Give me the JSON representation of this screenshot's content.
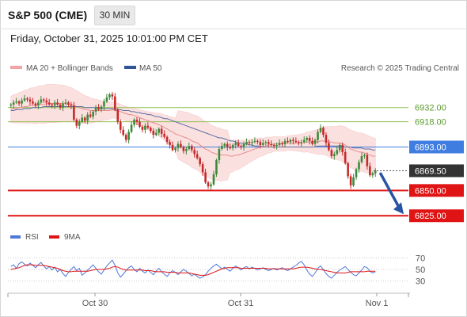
{
  "header": {
    "title": "S&P 500 (CME)",
    "timeframe": "30 MIN",
    "datetime": "Friday, October 31, 2025 10:01:00 PM CET"
  },
  "legend": {
    "ma20": "MA 20 + Bollinger Bands",
    "ma50": "MA 50",
    "copyright": "Research © 2025 Trading Central",
    "rsi": "RSI",
    "ma9": "9MA"
  },
  "colors": {
    "up": "#3b8a3b",
    "down": "#c62a2a",
    "bollinger_fill": "#fbe0e0",
    "ma20": "#e88b8b",
    "ma50": "#5b6ea3",
    "resistance": "#8fbf4f",
    "pivot": "#3f7de0",
    "support": "#e01414",
    "last": "#333333",
    "rsi": "#4f78d8",
    "rsi_ma": "#e01414",
    "arrow": "#2855a3"
  },
  "chart_data": [
    {
      "type": "candlestick",
      "title": "S&P 500 (CME) 30 MIN",
      "y_range": [
        6815,
        6960
      ],
      "x_ticks": [
        "Oct 30",
        "Oct 31",
        "Nov 1"
      ],
      "levels": [
        {
          "label": "6932.00",
          "value": 6932.0,
          "kind": "resistance"
        },
        {
          "label": "6918.00",
          "value": 6918.0,
          "kind": "resistance"
        },
        {
          "label": "6893.00",
          "value": 6893.0,
          "kind": "pivot"
        },
        {
          "label": "6869.50",
          "value": 6869.5,
          "kind": "last"
        },
        {
          "label": "6850.00",
          "value": 6850.0,
          "kind": "support"
        },
        {
          "label": "6825.00",
          "value": 6825.0,
          "kind": "support"
        }
      ],
      "closes": [
        6935,
        6937,
        6938,
        6936,
        6939,
        6941,
        6940,
        6938,
        6936,
        6934,
        6937,
        6940,
        6939,
        6937,
        6935,
        6934,
        6937,
        6935,
        6932,
        6936,
        6937,
        6935,
        6934,
        6920,
        6914,
        6918,
        6922,
        6919,
        6925,
        6923,
        6928,
        6932,
        6930,
        6933,
        6938,
        6942,
        6945,
        6943,
        6930,
        6918,
        6910,
        6905,
        6900,
        6908,
        6915,
        6920,
        6918,
        6913,
        6910,
        6914,
        6912,
        6909,
        6905,
        6907,
        6911,
        6906,
        6903,
        6898,
        6895,
        6890,
        6892,
        6896,
        6893,
        6889,
        6891,
        6894,
        6890,
        6886,
        6882,
        6876,
        6868,
        6858,
        6854,
        6856,
        6866,
        6880,
        6891,
        6894,
        6896,
        6893,
        6892,
        6895,
        6897,
        6894,
        6893,
        6896,
        6898,
        6897,
        6898,
        6899,
        6898,
        6895,
        6897,
        6898,
        6896,
        6895,
        6894,
        6895,
        6897,
        6896,
        6899,
        6898,
        6900,
        6899,
        6898,
        6897,
        6898,
        6900,
        6902,
        6899,
        6896,
        6900,
        6908,
        6912,
        6905,
        6897,
        6890,
        6884,
        6886,
        6890,
        6895,
        6888,
        6877,
        6864,
        6855,
        6863,
        6871,
        6878,
        6884,
        6885,
        6874,
        6865,
        6867,
        6869.5
      ],
      "ma20": [
        6930,
        6931,
        6931,
        6932,
        6932,
        6933,
        6933,
        6934,
        6934,
        6934,
        6935,
        6935,
        6935,
        6936,
        6936,
        6936,
        6936,
        6936,
        6936,
        6936,
        6936,
        6935,
        6935,
        6934,
        6933,
        6932,
        6931,
        6930,
        6930,
        6929,
        6929,
        6929,
        6929,
        6929,
        6929,
        6929,
        6929,
        6930,
        6929,
        6929,
        6928,
        6927,
        6926,
        6925,
        6925,
        6924,
        6923,
        6922,
        6921,
        6920,
        6919,
        6918,
        6917,
        6916,
        6915,
        6914,
        6912,
        6911,
        6909,
        6908,
        6906,
        6905,
        6904,
        6903,
        6902,
        6901,
        6899,
        6898,
        6897,
        6895,
        6893,
        6891,
        6890,
        6888,
        6887,
        6886,
        6886,
        6885,
        6885,
        6885,
        6884,
        6884,
        6885,
        6885,
        6886,
        6887,
        6888,
        6889,
        6890,
        6891,
        6892,
        6893,
        6893,
        6894,
        6895,
        6895,
        6896,
        6896,
        6896,
        6896,
        6896,
        6897,
        6897,
        6897,
        6897,
        6897,
        6897,
        6897,
        6898,
        6898,
        6898,
        6898,
        6898,
        6899,
        6899,
        6899,
        6898,
        6898,
        6897,
        6897,
        6897,
        6896,
        6895,
        6893,
        6891,
        6890,
        6889,
        6888,
        6888,
        6887,
        6886,
        6885,
        6884,
        6884
      ],
      "ma50": [
        6929,
        6929,
        6930,
        6930,
        6930,
        6931,
        6931,
        6931,
        6932,
        6932,
        6932,
        6932,
        6933,
        6933,
        6933,
        6933,
        6933,
        6933,
        6933,
        6933,
        6933,
        6933,
        6933,
        6933,
        6933,
        6933,
        6933,
        6932,
        6932,
        6932,
        6932,
        6932,
        6932,
        6932,
        6931,
        6931,
        6931,
        6931,
        6930,
        6930,
        6930,
        6929,
        6929,
        6929,
        6928,
        6928,
        6927,
        6927,
        6926,
        6926,
        6925,
        6925,
        6924,
        6923,
        6923,
        6922,
        6921,
        6921,
        6920,
        6919,
        6918,
        6917,
        6916,
        6915,
        6914,
        6913,
        6912,
        6911,
        6910,
        6909,
        6908,
        6907,
        6906,
        6905,
        6904,
        6903,
        6902,
        6902,
        6901,
        6900,
        6899,
        6899,
        6898,
        6897,
        6897,
        6896,
        6896,
        6895,
        6895,
        6894,
        6894,
        6894,
        6893,
        6893,
        6893,
        6893,
        6893,
        6893,
        6893,
        6893,
        6893,
        6893,
        6893,
        6893,
        6893,
        6893,
        6893,
        6893,
        6893,
        6893,
        6893,
        6893,
        6894,
        6894,
        6894,
        6894,
        6894,
        6894,
        6894,
        6894,
        6894,
        6894,
        6893,
        6893,
        6893,
        6892,
        6892,
        6892,
        6892,
        6891,
        6891,
        6891,
        6890,
        6890
      ]
    },
    {
      "type": "line",
      "title": "RSI",
      "y_ticks": [
        70,
        50,
        30
      ],
      "y_range": [
        20,
        80
      ],
      "series": [
        {
          "name": "RSI",
          "values": [
            55,
            58,
            52,
            60,
            63,
            59,
            56,
            61,
            57,
            53,
            58,
            62,
            56,
            51,
            55,
            49,
            54,
            46,
            50,
            43,
            38,
            45,
            50,
            55,
            48,
            52,
            40,
            44,
            49,
            53,
            58,
            52,
            46,
            42,
            49,
            56,
            61,
            66,
            57,
            44,
            37,
            42,
            48,
            53,
            56,
            50,
            46,
            52,
            47,
            44,
            49,
            45,
            41,
            47,
            52,
            46,
            42,
            38,
            44,
            48,
            45,
            41,
            46,
            50,
            47,
            43,
            39,
            42,
            38,
            35,
            37,
            41,
            47,
            52,
            56,
            59,
            55,
            51,
            54,
            50,
            47,
            52,
            56,
            53,
            49,
            53,
            55,
            51,
            54,
            52,
            49,
            51,
            53,
            50,
            48,
            50,
            52,
            49,
            51,
            53,
            50,
            48,
            51,
            54,
            57,
            61,
            64,
            58,
            49,
            42,
            38,
            44,
            52,
            56,
            50,
            43,
            38,
            35,
            40,
            45,
            49,
            52,
            55,
            50,
            45,
            41,
            39,
            44,
            49,
            55,
            53,
            47,
            44,
            46
          ]
        },
        {
          "name": "9MA",
          "values": [
            50,
            51,
            52,
            53,
            55,
            57,
            58,
            58,
            58,
            57,
            57,
            57,
            57,
            56,
            55,
            54,
            53,
            52,
            50,
            48,
            47,
            46,
            46,
            47,
            47,
            47,
            47,
            47,
            47,
            48,
            49,
            50,
            50,
            50,
            50,
            51,
            52,
            54,
            55,
            54,
            52,
            50,
            49,
            49,
            49,
            49,
            49,
            49,
            49,
            48,
            48,
            48,
            47,
            46,
            46,
            46,
            46,
            45,
            45,
            45,
            45,
            44,
            44,
            44,
            44,
            44,
            43,
            42,
            41,
            40,
            40,
            40,
            41,
            43,
            45,
            47,
            49,
            51,
            52,
            53,
            53,
            53,
            53,
            53,
            52,
            52,
            52,
            52,
            52,
            52,
            52,
            52,
            52,
            52,
            51,
            51,
            51,
            51,
            51,
            51,
            51,
            51,
            51,
            51,
            52,
            53,
            54,
            54,
            54,
            53,
            52,
            51,
            50,
            50,
            49,
            48,
            47,
            46,
            45,
            44,
            44,
            44,
            44,
            45,
            46,
            46,
            46,
            46,
            46,
            46,
            47,
            47,
            47,
            47
          ]
        }
      ]
    }
  ]
}
